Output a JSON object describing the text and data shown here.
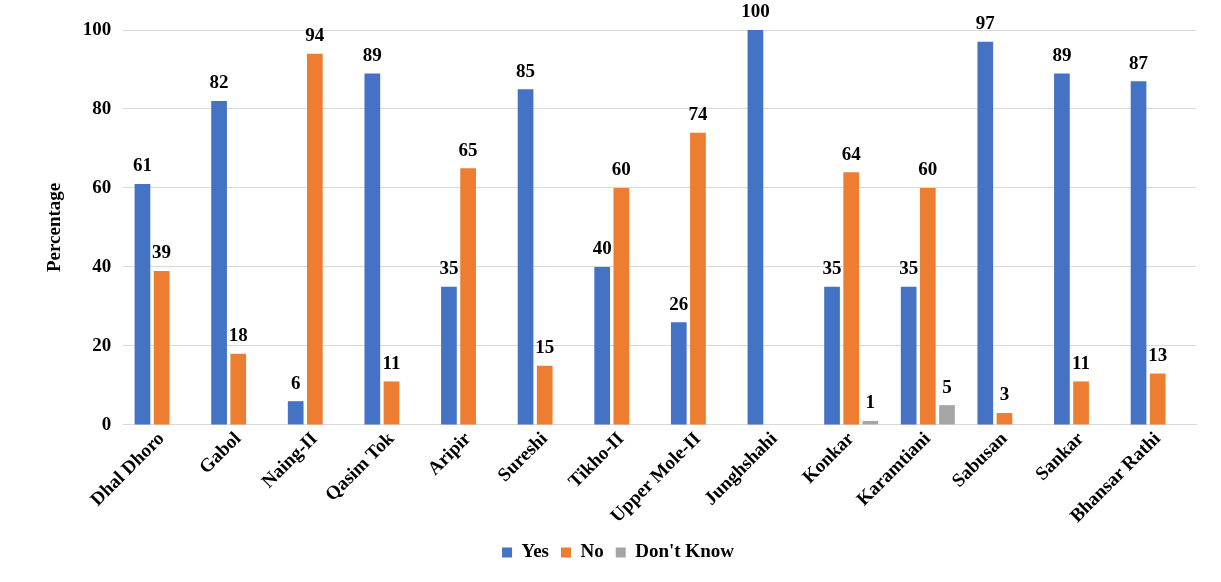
{
  "chart_data": {
    "type": "bar",
    "ylabel": "Percentage",
    "categories": [
      "Dhal Dhoro",
      "Gabol",
      "Naing-II",
      "Qasim Tok",
      "Aripir",
      "Sureshi",
      "Tikho-II",
      "Upper Mole-II",
      "Junghshahi",
      "Konkar",
      "Karamtiani",
      "Sabusan",
      "Sankar",
      "Bhansar Rathi"
    ],
    "series": [
      {
        "name": "Yes",
        "color": "#4472c4",
        "values": [
          61,
          82,
          6,
          89,
          35,
          85,
          40,
          26,
          100,
          35,
          35,
          97,
          89,
          87
        ]
      },
      {
        "name": "No",
        "color": "#ed7d31",
        "values": [
          39,
          18,
          94,
          11,
          65,
          15,
          60,
          74,
          null,
          64,
          60,
          3,
          11,
          13
        ]
      },
      {
        "name": "Don't Know",
        "color": "#a5a5a5",
        "values": [
          null,
          null,
          null,
          null,
          null,
          null,
          null,
          null,
          null,
          1,
          5,
          null,
          null,
          null
        ]
      }
    ],
    "ylim": [
      0,
      100
    ],
    "yticks": [
      0,
      20,
      40,
      60,
      80,
      100
    ],
    "grid": "y",
    "legend": "bottom",
    "data_labels": true
  }
}
